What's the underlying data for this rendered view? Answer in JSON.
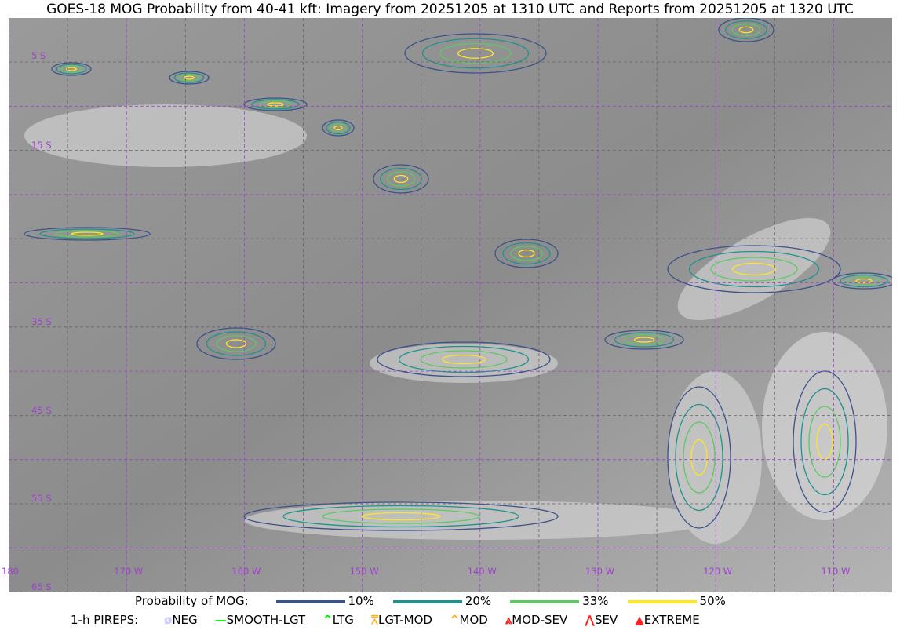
{
  "title": "GOES-18 MOG Probability from 40-41 kft: Imagery from 20251205 at 1310 UTC and Reports from 20251205 at 1320 UTC",
  "map": {
    "longitude_labels": [
      "180",
      "170 W",
      "160 W",
      "150 W",
      "140 W",
      "130 W",
      "120 W",
      "110 W"
    ],
    "latitude_labels": [
      "5 S",
      "15 S",
      "35 S",
      "45 S",
      "55 S",
      "65 S"
    ],
    "grid_color": "#a040d0"
  },
  "legend": {
    "probability_title": "Probability of MOG:",
    "probability_levels": [
      {
        "label": "10%",
        "color": "#3b528b"
      },
      {
        "label": "20%",
        "color": "#21918c"
      },
      {
        "label": "33%",
        "color": "#5ec962"
      },
      {
        "label": "50%",
        "color": "#fde725"
      }
    ],
    "pireps_title": "1-h PIREPS:",
    "pireps": [
      {
        "label": "NEG",
        "color": "#c8c8ff",
        "icon": "null-icon"
      },
      {
        "label": "SMOOTH-LGT",
        "color": "#00ee00",
        "icon": "line-icon"
      },
      {
        "label": "LTG",
        "color": "#00ee00",
        "icon": "caret-icon"
      },
      {
        "label": "LGT-MOD",
        "color": "#ffb020",
        "icon": "caret-bar-icon"
      },
      {
        "label": "MOD",
        "color": "#ffb020",
        "icon": "caret-icon"
      },
      {
        "label": "MOD-SEV",
        "color": "#ff2020",
        "icon": "double-caret-bar-icon"
      },
      {
        "label": "SEV",
        "color": "#ff2020",
        "icon": "double-caret-icon"
      },
      {
        "label": "EXTREME",
        "color": "#ff2020",
        "icon": "filled-triangle-icon"
      }
    ]
  }
}
